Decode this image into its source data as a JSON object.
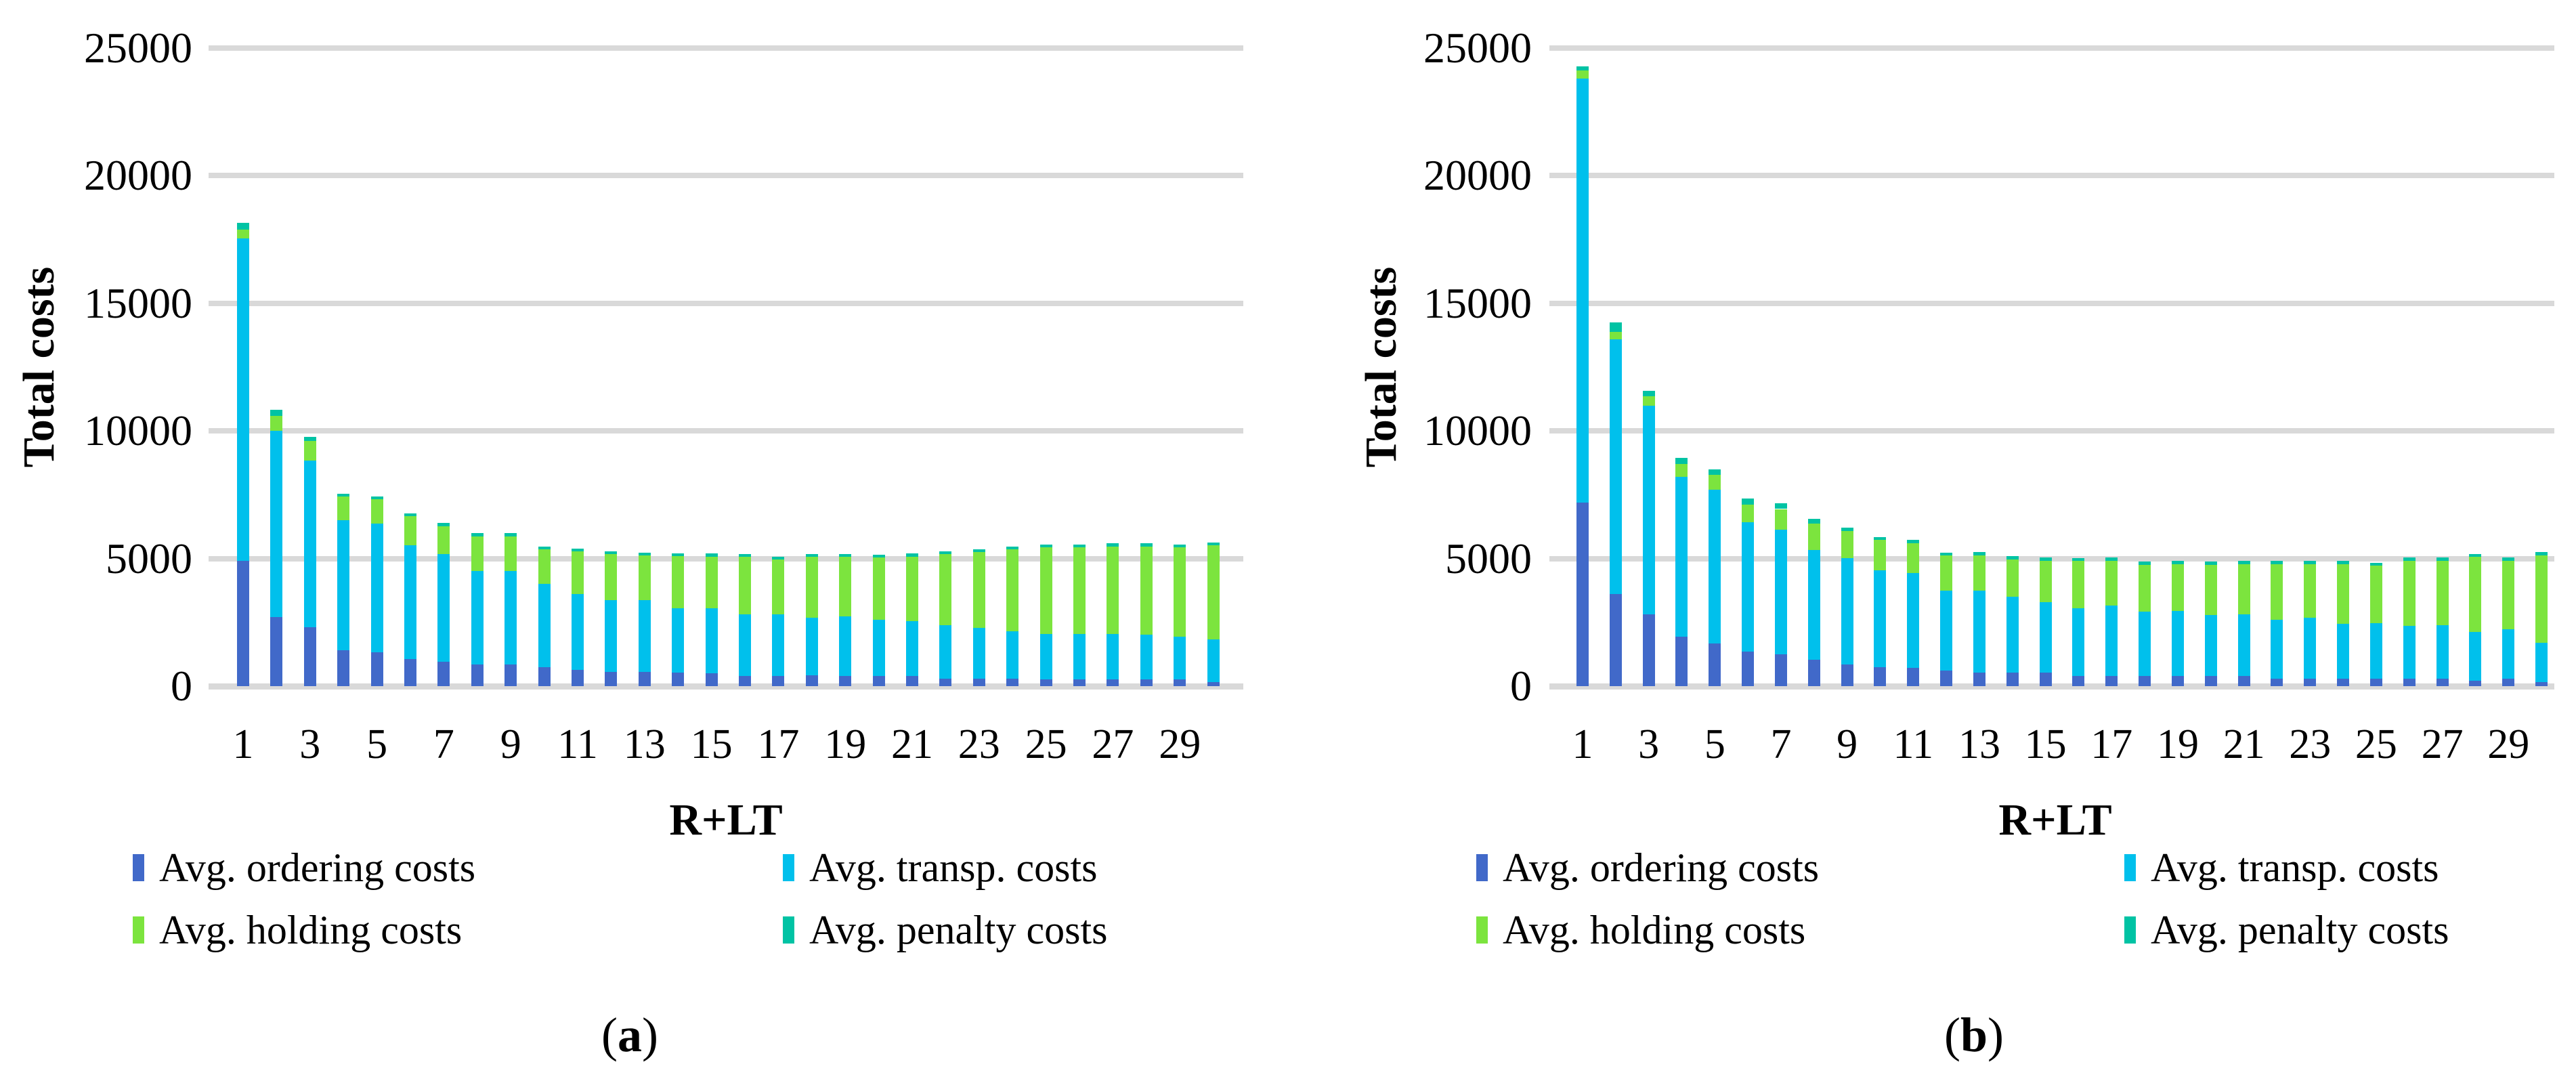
{
  "figure": {
    "background": "#ffffff"
  },
  "colors": {
    "ordering": "#4169C9",
    "transp": "#00C0EC",
    "holding": "#7CE43E",
    "penalty": "#00C3A4",
    "gridline": "#D9D9D9",
    "text": "#000000"
  },
  "captions": {
    "a": {
      "open": "(",
      "letter": "a",
      "close": ")"
    },
    "b": {
      "open": "(",
      "letter": "b",
      "close": ")"
    }
  },
  "chart_data": [
    {
      "id": "a",
      "type": "bar",
      "stacked": true,
      "title": "",
      "xlabel": "R+LT",
      "ylabel": "Total costs",
      "ylim": [
        0,
        25000
      ],
      "y_ticks": [
        0,
        5000,
        10000,
        15000,
        20000,
        25000
      ],
      "grid": "horizontal",
      "legend_position": "bottom",
      "categories": [
        1,
        2,
        3,
        4,
        5,
        6,
        7,
        8,
        9,
        10,
        11,
        12,
        13,
        14,
        15,
        16,
        17,
        18,
        19,
        20,
        21,
        22,
        23,
        24,
        25,
        26,
        27,
        28,
        29,
        30
      ],
      "x_tick_labels": [
        "1",
        "3",
        "5",
        "7",
        "9",
        "11",
        "13",
        "15",
        "17",
        "19",
        "21",
        "23",
        "25",
        "27",
        "29"
      ],
      "series": [
        {
          "key": "ordering",
          "name": "Avg. ordering costs",
          "values": [
            4900,
            2700,
            2300,
            1410,
            1330,
            1060,
            960,
            840,
            850,
            740,
            640,
            560,
            560,
            520,
            510,
            410,
            410,
            420,
            410,
            410,
            410,
            300,
            300,
            300,
            270,
            270,
            270,
            260,
            270,
            170
          ]
        },
        {
          "key": "transp",
          "name": "Avg. transp. costs",
          "values": [
            12640,
            7300,
            6540,
            5090,
            5030,
            4460,
            4210,
            3660,
            3660,
            3270,
            2980,
            2800,
            2800,
            2540,
            2550,
            2410,
            2410,
            2270,
            2320,
            2190,
            2130,
            2080,
            1990,
            1860,
            1780,
            1780,
            1780,
            1750,
            1670,
            1660
          ]
        },
        {
          "key": "holding",
          "name": "Avg. holding costs",
          "values": [
            350,
            590,
            770,
            930,
            970,
            1150,
            1100,
            1360,
            1350,
            1350,
            1650,
            1820,
            1770,
            2040,
            2020,
            2240,
            2130,
            2370,
            2330,
            2430,
            2540,
            2790,
            2970,
            3200,
            3380,
            3380,
            3430,
            3470,
            3490,
            3690
          ]
        },
        {
          "key": "penalty",
          "name": "Avg. penalty costs",
          "values": [
            260,
            240,
            160,
            100,
            100,
            90,
            130,
            130,
            130,
            120,
            120,
            100,
            110,
            110,
            110,
            110,
            110,
            110,
            110,
            110,
            120,
            110,
            110,
            120,
            120,
            120,
            110,
            110,
            110,
            110
          ]
        }
      ]
    },
    {
      "id": "b",
      "type": "bar",
      "stacked": true,
      "title": "",
      "xlabel": "R+LT",
      "ylabel": "Total costs",
      "ylim": [
        0,
        25000
      ],
      "y_ticks": [
        0,
        5000,
        10000,
        15000,
        20000,
        25000
      ],
      "grid": "horizontal",
      "legend_position": "bottom",
      "categories": [
        1,
        2,
        3,
        4,
        5,
        6,
        7,
        8,
        9,
        10,
        11,
        12,
        13,
        14,
        15,
        16,
        17,
        18,
        19,
        20,
        21,
        22,
        23,
        24,
        25,
        26,
        27,
        28,
        29,
        30
      ],
      "x_tick_labels": [
        "1",
        "3",
        "5",
        "7",
        "9",
        "11",
        "13",
        "15",
        "17",
        "19",
        "21",
        "23",
        "25",
        "27",
        "29"
      ],
      "series": [
        {
          "key": "ordering",
          "name": "Avg. ordering costs",
          "values": [
            7200,
            3600,
            2800,
            1940,
            1670,
            1350,
            1250,
            1030,
            850,
            730,
            710,
            610,
            530,
            530,
            530,
            390,
            390,
            390,
            390,
            390,
            390,
            280,
            280,
            280,
            280,
            280,
            280,
            200,
            280,
            150
          ]
        },
        {
          "key": "transp",
          "name": "Avg. transp. costs",
          "values": [
            16600,
            10000,
            8200,
            6260,
            6030,
            5070,
            4880,
            4300,
            4160,
            3810,
            3710,
            3120,
            3200,
            2980,
            2760,
            2670,
            2760,
            2530,
            2560,
            2400,
            2430,
            2320,
            2390,
            2170,
            2200,
            2080,
            2110,
            1930,
            1960,
            1560
          ]
        },
        {
          "key": "holding",
          "name": "Avg. holding costs",
          "values": [
            320,
            290,
            370,
            500,
            580,
            700,
            810,
            1040,
            1070,
            1200,
            1170,
            1390,
            1400,
            1460,
            1610,
            1840,
            1750,
            1830,
            1830,
            1970,
            1960,
            2180,
            2120,
            2330,
            2240,
            2540,
            2530,
            2930,
            2680,
            3420
          ]
        },
        {
          "key": "penalty",
          "name": "Avg. penalty costs",
          "values": [
            170,
            350,
            190,
            240,
            220,
            230,
            230,
            190,
            120,
            110,
            150,
            120,
            120,
            120,
            130,
            120,
            130,
            120,
            120,
            120,
            120,
            120,
            120,
            120,
            110,
            130,
            120,
            120,
            120,
            120
          ]
        }
      ]
    }
  ]
}
